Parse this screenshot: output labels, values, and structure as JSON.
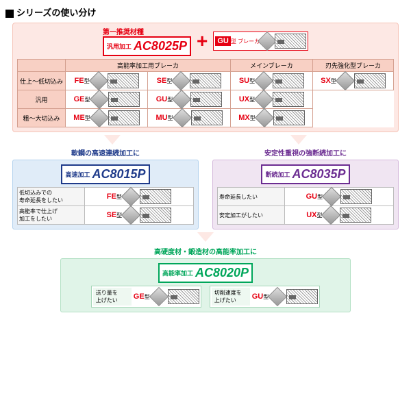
{
  "title": "シリーズの使い分け",
  "top": {
    "rec_label": "第一推奨材種",
    "main_grade": {
      "tag": "汎用加工",
      "name": "AC8025P"
    },
    "gu": {
      "label": "GU",
      "type_suf": "型",
      "sub": "ブレーカ",
      "rec": "第一推奨"
    }
  },
  "table": {
    "col_headers": [
      "高能率加工用ブレーカ",
      "メインブレーカ",
      "刃先強化型ブレーカ"
    ],
    "rows": [
      {
        "hdr": "仕上～低切込み",
        "cells": [
          [
            "FE",
            "型"
          ],
          [
            "SE",
            "型"
          ],
          [
            "SU",
            "型"
          ],
          [
            "SX",
            "型"
          ]
        ]
      },
      {
        "hdr": "汎用",
        "cells": [
          [
            "GE",
            "型"
          ],
          [
            "",
            "."
          ],
          [
            "GU",
            "型"
          ],
          [
            "UX",
            "型"
          ]
        ]
      },
      {
        "hdr": "粗～大切込み",
        "cells": [
          [
            "ME",
            "型"
          ],
          [
            "",
            "."
          ],
          [
            "MU",
            "型"
          ],
          [
            "MX",
            "型"
          ]
        ]
      }
    ],
    "dims": {
      "r0": [
        "1.40",
        "1.5",
        "1.3",
        "1.35"
      ],
      "r1": [
        "2.0",
        "",
        "2.05",
        "2.05"
      ],
      "r2": [
        "2.4",
        "",
        "2.0",
        "2.05"
      ]
    }
  },
  "mid": {
    "left": {
      "title": "軟鋼の高速連続加工に",
      "grade": {
        "tag": "高速加工",
        "name": "AC8015P"
      },
      "items": [
        {
          "desc": "低切込みでの\n寿命延長をしたい",
          "type": "FE",
          "dim": "1.40"
        },
        {
          "desc": "高能率で仕上げ\n加工をしたい",
          "type": "SE",
          "dim": "1.5"
        }
      ]
    },
    "right": {
      "title": "安定性重視の強断続加工に",
      "grade": {
        "tag": "断続加工",
        "name": "AC8035P"
      },
      "items": [
        {
          "desc": "寿命延長したい",
          "type": "GU",
          "dim": "2.05"
        },
        {
          "desc": "安定加工がしたい",
          "type": "UX",
          "dim": "2.05"
        }
      ]
    }
  },
  "bottom": {
    "title": "高硬度材・鍛造材の高能率加工に",
    "grade": {
      "tag": "高能率加工",
      "name": "AC8020P"
    },
    "items": [
      {
        "desc": "送り量を\n上げたい",
        "type": "GE",
        "dim": "2.0"
      },
      {
        "desc": "切削速度を\n上げたい",
        "type": "GU",
        "dim": "2.05"
      }
    ]
  },
  "suf": "型",
  "colors": {
    "red": "#e60012",
    "blue": "#1e3a8a",
    "purple": "#6b2c91",
    "green": "#00a65a",
    "top_bg": "#fde8e4"
  }
}
